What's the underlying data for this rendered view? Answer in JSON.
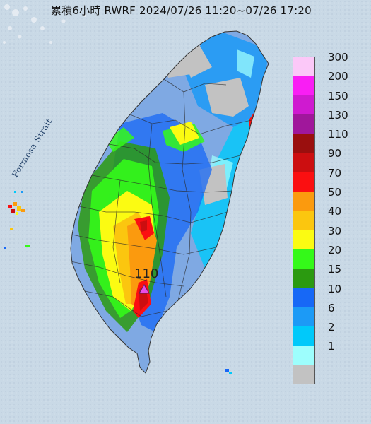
{
  "title": "累積6小時 RWRF 2024/07/26 11:20~07/26 17:20",
  "strait_label": "Formosa Strait",
  "peak_value": "110",
  "colors": {
    "sea": "#c9d9e6",
    "land_base": "#7fa9e3",
    "county_line": "#2a2a2a",
    "peak_marker": "#e94ce4"
  },
  "legend": {
    "items": [
      {
        "label": "300",
        "color": "#fbc8f8"
      },
      {
        "label": "200",
        "color": "#f91ef4"
      },
      {
        "label": "150",
        "color": "#cf1ad0"
      },
      {
        "label": "130",
        "color": "#a0179b"
      },
      {
        "label": "110",
        "color": "#9a0f0e"
      },
      {
        "label": "90",
        "color": "#cc0e10"
      },
      {
        "label": "70",
        "color": "#fb0f11"
      },
      {
        "label": "50",
        "color": "#fb9a0e"
      },
      {
        "label": "40",
        "color": "#fbc60f"
      },
      {
        "label": "30",
        "color": "#fbfb12"
      },
      {
        "label": "20",
        "color": "#34f919"
      },
      {
        "label": "15",
        "color": "#2b9a10"
      },
      {
        "label": "10",
        "color": "#1768f6"
      },
      {
        "label": "6",
        "color": "#1c9af6"
      },
      {
        "label": "2",
        "color": "#00c9fa"
      },
      {
        "label": "1",
        "color": "#9dfefd"
      },
      {
        "label": "",
        "color": "#c2c2c2"
      }
    ]
  }
}
